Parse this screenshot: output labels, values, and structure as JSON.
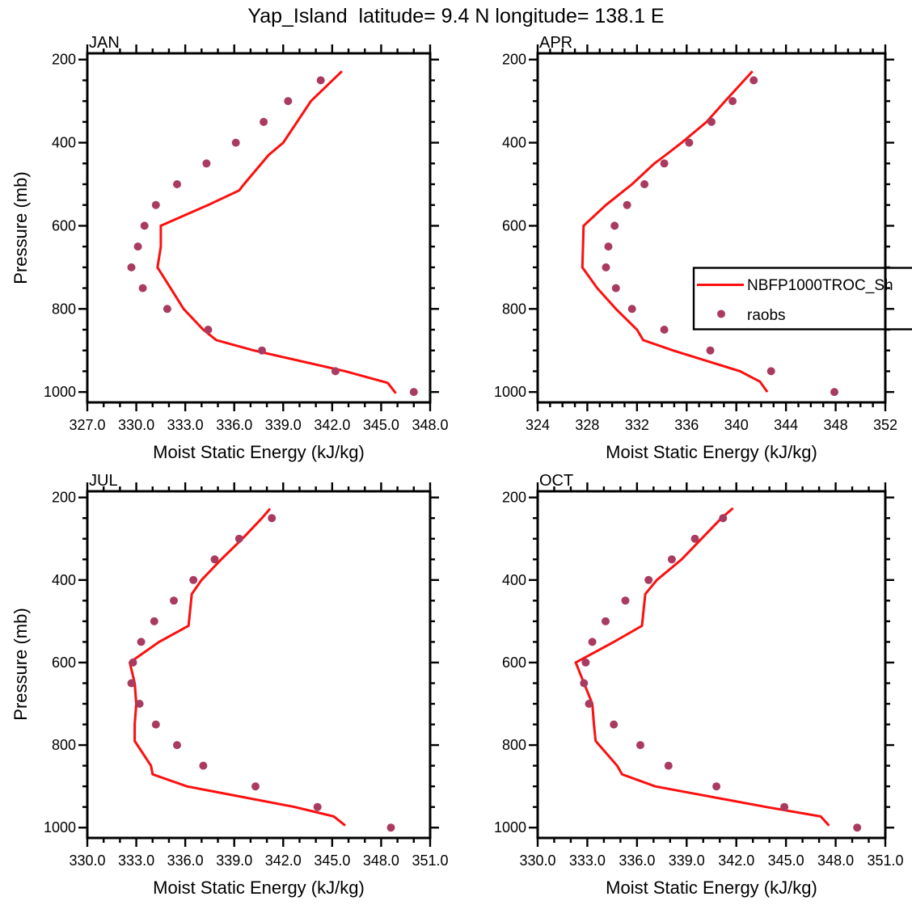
{
  "title": "Yap_Island  latitude= 9.4 N longitude= 138.1 E",
  "ylabel": "Pressure (mb)",
  "xlabel": "Moist Static Energy (kJ/kg)",
  "legend": {
    "line_label": "NBFP1000TROC_Sh",
    "dot_label": "raobs"
  },
  "colors": {
    "line": "#fb0f0f",
    "dots": "#a93b60",
    "axis": "#000000",
    "background": "#ffffff"
  },
  "yaxis": {
    "ticks": [
      200,
      400,
      600,
      800,
      1000
    ],
    "tick_labels": [
      "200",
      "400",
      "600",
      "800",
      "1000"
    ],
    "minor_step": 50,
    "domain": [
      185,
      1025
    ]
  },
  "chart_data": [
    {
      "type": "line",
      "panel": "JAN",
      "xlabel": "Moist Static Energy (kJ/kg)",
      "ylabel": "Pressure (mb)",
      "xlim": [
        327,
        348
      ],
      "xticks": [
        "327.0",
        "330.0",
        "333.0",
        "336.0",
        "339.0",
        "342.0",
        "345.0",
        "348.0"
      ],
      "x_minor_step": 1,
      "series": [
        {
          "name": "NBFP1000TROC_Sh",
          "type": "line",
          "points_mse_p": [
            [
              342.6,
              228
            ],
            [
              340.7,
              300
            ],
            [
              339.0,
              400
            ],
            [
              338.1,
              430
            ],
            [
              336.6,
              500
            ],
            [
              336.3,
              515
            ],
            [
              334.4,
              550
            ],
            [
              331.5,
              600
            ],
            [
              331.5,
              650
            ],
            [
              331.3,
              700
            ],
            [
              332.1,
              750
            ],
            [
              332.9,
              800
            ],
            [
              334.1,
              850
            ],
            [
              334.9,
              875
            ],
            [
              337.2,
              900
            ],
            [
              342.8,
              950
            ],
            [
              345.4,
              978
            ],
            [
              345.9,
              1003
            ]
          ]
        },
        {
          "name": "raobs",
          "type": "scatter",
          "points_mse_p": [
            [
              341.3,
              250
            ],
            [
              339.3,
              300
            ],
            [
              337.8,
              350
            ],
            [
              336.1,
              400
            ],
            [
              334.3,
              450
            ],
            [
              332.5,
              500
            ],
            [
              331.2,
              550
            ],
            [
              330.5,
              600
            ],
            [
              330.1,
              650
            ],
            [
              329.7,
              700
            ],
            [
              330.4,
              750
            ],
            [
              331.9,
              800
            ],
            [
              334.4,
              850
            ],
            [
              337.7,
              900
            ],
            [
              342.2,
              950
            ],
            [
              347.0,
              1000
            ]
          ]
        }
      ]
    },
    {
      "type": "line",
      "panel": "APR",
      "xlabel": "Moist Static Energy (kJ/kg)",
      "ylabel": "Pressure (mb)",
      "xlim": [
        324,
        352
      ],
      "xticks": [
        "324",
        "328",
        "332",
        "336",
        "340",
        "344",
        "348",
        "352"
      ],
      "x_minor_step": 1,
      "series": [
        {
          "name": "NBFP1000TROC_Sh",
          "type": "line",
          "points_mse_p": [
            [
              341.3,
              228
            ],
            [
              339.1,
              300
            ],
            [
              337.6,
              350
            ],
            [
              335.6,
              400
            ],
            [
              334.3,
              430
            ],
            [
              333.4,
              450
            ],
            [
              331.6,
              500
            ],
            [
              329.5,
              550
            ],
            [
              327.7,
              600
            ],
            [
              327.6,
              700
            ],
            [
              328.8,
              750
            ],
            [
              330.3,
              800
            ],
            [
              332.0,
              850
            ],
            [
              332.5,
              875
            ],
            [
              334.9,
              900
            ],
            [
              340.3,
              950
            ],
            [
              341.9,
              975
            ],
            [
              342.5,
              1000
            ]
          ]
        },
        {
          "name": "raobs",
          "type": "scatter",
          "points_mse_p": [
            [
              341.4,
              250
            ],
            [
              339.7,
              300
            ],
            [
              338.0,
              350
            ],
            [
              336.2,
              400
            ],
            [
              334.2,
              450
            ],
            [
              332.6,
              500
            ],
            [
              331.2,
              550
            ],
            [
              330.2,
              600
            ],
            [
              329.7,
              650
            ],
            [
              329.5,
              700
            ],
            [
              330.3,
              750
            ],
            [
              331.6,
              800
            ],
            [
              334.2,
              850
            ],
            [
              337.9,
              900
            ],
            [
              342.8,
              950
            ],
            [
              347.9,
              1000
            ]
          ]
        }
      ]
    },
    {
      "type": "line",
      "panel": "JUL",
      "xlabel": "Moist Static Energy (kJ/kg)",
      "ylabel": "Pressure (mb)",
      "xlim": [
        330,
        351
      ],
      "xticks": [
        "330.0",
        "333.0",
        "336.0",
        "339.0",
        "342.0",
        "345.0",
        "348.0",
        "351.0"
      ],
      "x_minor_step": 1,
      "series": [
        {
          "name": "NBFP1000TROC_Sh",
          "type": "line",
          "points_mse_p": [
            [
              341.2,
              227
            ],
            [
              340.7,
              250
            ],
            [
              339.5,
              300
            ],
            [
              338.2,
              350
            ],
            [
              337.0,
              400
            ],
            [
              336.4,
              434
            ],
            [
              336.2,
              511
            ],
            [
              334.4,
              550
            ],
            [
              332.6,
              600
            ],
            [
              332.9,
              650
            ],
            [
              333.0,
              700
            ],
            [
              332.9,
              750
            ],
            [
              332.9,
              790
            ],
            [
              333.9,
              850
            ],
            [
              334.0,
              871
            ],
            [
              336.1,
              900
            ],
            [
              342.7,
              950
            ],
            [
              345.1,
              973
            ],
            [
              345.8,
              995
            ]
          ]
        },
        {
          "name": "raobs",
          "type": "scatter",
          "points_mse_p": [
            [
              341.3,
              250
            ],
            [
              339.3,
              300
            ],
            [
              337.8,
              350
            ],
            [
              336.5,
              400
            ],
            [
              335.3,
              450
            ],
            [
              334.1,
              500
            ],
            [
              333.3,
              550
            ],
            [
              332.8,
              600
            ],
            [
              332.7,
              650
            ],
            [
              333.2,
              700
            ],
            [
              334.2,
              750
            ],
            [
              335.5,
              800
            ],
            [
              337.1,
              850
            ],
            [
              340.3,
              900
            ],
            [
              344.1,
              950
            ],
            [
              348.6,
              1000
            ]
          ]
        }
      ]
    },
    {
      "type": "line",
      "panel": "OCT",
      "xlabel": "Moist Static Energy (kJ/kg)",
      "ylabel": "Pressure (mb)",
      "xlim": [
        330,
        351
      ],
      "xticks": [
        "330.0",
        "333.0",
        "336.0",
        "339.0",
        "342.0",
        "345.0",
        "348.0",
        "351.0"
      ],
      "x_minor_step": 1,
      "series": [
        {
          "name": "NBFP1000TROC_Sh",
          "type": "line",
          "points_mse_p": [
            [
              341.8,
              226
            ],
            [
              341.1,
              250
            ],
            [
              339.9,
              300
            ],
            [
              338.7,
              350
            ],
            [
              337.2,
              400
            ],
            [
              336.5,
              434
            ],
            [
              336.3,
              511
            ],
            [
              334.6,
              550
            ],
            [
              332.3,
              600
            ],
            [
              332.8,
              650
            ],
            [
              333.3,
              700
            ],
            [
              333.4,
              750
            ],
            [
              333.5,
              790
            ],
            [
              334.8,
              850
            ],
            [
              335.1,
              871
            ],
            [
              337.1,
              900
            ],
            [
              343.8,
              950
            ],
            [
              347.1,
              973
            ],
            [
              347.6,
              995
            ]
          ]
        },
        {
          "name": "raobs",
          "type": "scatter",
          "points_mse_p": [
            [
              349.3,
              1000
            ],
            [
              344.9,
              950
            ],
            [
              340.8,
              900
            ],
            [
              337.9,
              850
            ],
            [
              336.2,
              800
            ],
            [
              334.6,
              750
            ],
            [
              333.1,
              700
            ],
            [
              332.8,
              650
            ],
            [
              332.9,
              600
            ],
            [
              333.3,
              550
            ],
            [
              334.1,
              500
            ],
            [
              335.3,
              450
            ],
            [
              336.7,
              400
            ],
            [
              338.1,
              350
            ],
            [
              339.5,
              300
            ],
            [
              341.2,
              250
            ]
          ]
        }
      ]
    }
  ]
}
